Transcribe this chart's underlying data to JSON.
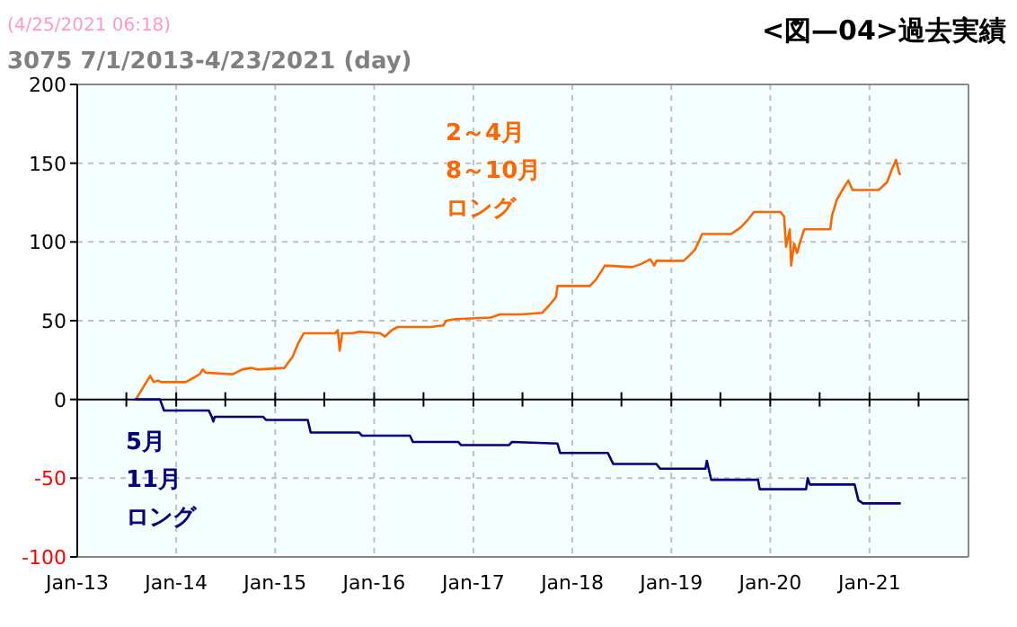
{
  "chart_data": {
    "type": "line",
    "title": "<図—04>過去実績",
    "subtitle": "3075 7/1/2013-4/23/2021 (day)",
    "annotations": [
      "(4/25/2021 06:18)"
    ],
    "xlim": [
      "2013-01-01",
      "2022-01-01"
    ],
    "xticks": [
      {
        "value": "2013-01-01",
        "label": "Jan-13"
      },
      {
        "value": "2013-07-01",
        "label": null
      },
      {
        "value": "2014-01-01",
        "label": "Jan-14"
      },
      {
        "value": "2014-07-01",
        "label": null
      },
      {
        "value": "2015-01-01",
        "label": "Jan-15"
      },
      {
        "value": "2015-07-01",
        "label": null
      },
      {
        "value": "2016-01-01",
        "label": "Jan-16"
      },
      {
        "value": "2016-07-01",
        "label": null
      },
      {
        "value": "2017-01-01",
        "label": "Jan-17"
      },
      {
        "value": "2017-07-01",
        "label": null
      },
      {
        "value": "2018-01-01",
        "label": "Jan-18"
      },
      {
        "value": "2018-07-01",
        "label": null
      },
      {
        "value": "2019-01-01",
        "label": "Jan-19"
      },
      {
        "value": "2019-07-01",
        "label": null
      },
      {
        "value": "2020-01-01",
        "label": "Jan-20"
      },
      {
        "value": "2020-07-01",
        "label": null
      },
      {
        "value": "2021-01-01",
        "label": "Jan-21"
      },
      {
        "value": "2021-07-01",
        "label": null
      }
    ],
    "ylim": [
      -100,
      200
    ],
    "yticks": [
      -100,
      -50,
      0,
      50,
      100,
      150,
      200
    ],
    "grid": true,
    "legend": false,
    "marker": "none",
    "line_style": "solid",
    "series": [
      {
        "name": "2～4月8～10月ロング",
        "color": "#ff6600",
        "x": [
          "2013-08-05",
          "2013-09-27",
          "2013-10-10",
          "2013-10-26",
          "2013-11-06",
          "2014-02-04",
          "2014-02-26",
          "2014-03-28",
          "2014-04-09",
          "2014-04-20",
          "2014-07-28",
          "2014-09-01",
          "2014-10-04",
          "2014-10-26",
          "2015-02-04",
          "2015-03-06",
          "2015-03-28",
          "2015-04-16",
          "2015-05-01",
          "2015-08-09",
          "2015-08-20",
          "2015-08-27",
          "2015-09-05",
          "2015-10-14",
          "2015-11-06",
          "2016-01-23",
          "2016-02-10",
          "2016-03-06",
          "2016-03-28",
          "2016-07-28",
          "2016-09-12",
          "2016-09-23",
          "2016-10-26",
          "2017-03-06",
          "2017-04-09",
          "2017-06-26",
          "2017-09-12",
          "2017-10-04",
          "2017-11-02",
          "2017-11-07",
          "2018-03-06",
          "2018-03-29",
          "2018-05-01",
          "2018-08-09",
          "2018-09-12",
          "2018-10-15",
          "2018-10-30",
          "2018-11-07",
          "2019-02-15",
          "2019-03-06",
          "2019-03-29",
          "2019-04-25",
          "2019-08-09",
          "2019-09-12",
          "2019-10-10",
          "2019-11-02",
          "2020-02-08",
          "2020-02-21",
          "2020-02-28",
          "2020-03-13",
          "2020-03-18",
          "2020-03-29",
          "2020-04-09",
          "2020-04-20",
          "2020-05-05",
          "2020-08-09",
          "2020-08-16",
          "2020-09-03",
          "2020-09-23",
          "2020-10-15",
          "2020-10-30",
          "2021-02-04",
          "2021-03-07",
          "2021-03-24",
          "2021-04-09",
          "2021-04-20",
          "2021-04-23"
        ],
        "values": [
          0,
          15,
          11,
          12,
          11,
          11,
          13,
          16,
          19,
          17,
          16,
          19,
          20,
          19,
          20,
          27,
          36,
          42,
          42,
          42,
          44,
          31,
          42,
          42,
          43,
          42,
          40,
          44,
          46,
          46,
          47,
          50,
          51,
          52,
          54,
          54,
          55,
          59,
          65,
          72,
          72,
          76,
          85,
          84,
          86,
          89,
          85,
          88,
          88,
          91,
          95,
          105,
          105,
          109,
          114,
          119,
          119,
          116,
          97,
          108,
          85,
          99,
          93,
          100,
          108,
          108,
          117,
          127,
          133,
          139,
          133,
          133,
          138,
          146,
          152,
          144,
          143
        ]
      },
      {
        "name": "5月11月ロング",
        "color": "#000080",
        "x": [
          "2013-08-05",
          "2013-11-02",
          "2013-11-17",
          "2014-05-01",
          "2014-05-12",
          "2014-05-18",
          "2014-05-23",
          "2014-11-17",
          "2014-11-28",
          "2015-05-01",
          "2015-05-12",
          "2015-11-06",
          "2015-11-17",
          "2016-05-12",
          "2016-05-23",
          "2016-11-06",
          "2016-11-17",
          "2017-05-12",
          "2017-05-23",
          "2017-11-07",
          "2017-11-17",
          "2018-05-12",
          "2018-06-01",
          "2018-11-07",
          "2018-11-21",
          "2019-05-07",
          "2019-05-12",
          "2019-05-28",
          "2019-11-17",
          "2019-11-23",
          "2020-05-12",
          "2020-05-18",
          "2020-05-26",
          "2020-11-07",
          "2020-11-21",
          "2020-12-08",
          "2021-04-23"
        ],
        "values": [
          0,
          0,
          -7,
          -7,
          -11,
          -14,
          -11,
          -11,
          -13,
          -13,
          -21,
          -21,
          -23,
          -23,
          -27,
          -27,
          -29,
          -29,
          -27,
          -28,
          -34,
          -34,
          -41,
          -41,
          -44,
          -44,
          -39,
          -51,
          -51,
          -57,
          -57,
          -50,
          -54,
          -54,
          -64,
          -66,
          -66
        ]
      }
    ]
  }
}
